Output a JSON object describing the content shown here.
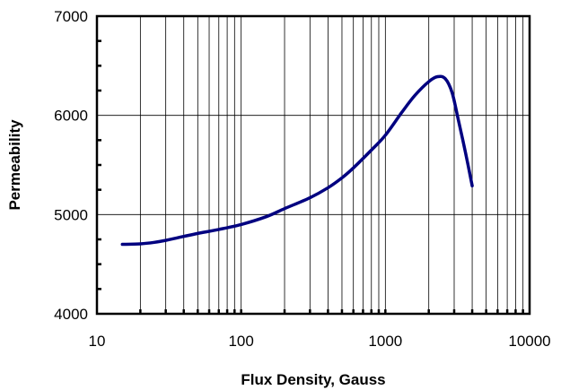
{
  "chart_data": {
    "type": "line",
    "title": "",
    "xlabel": "Flux Density, Gauss",
    "ylabel": "Permeability",
    "x_scale": "log",
    "xlim": [
      10,
      10000
    ],
    "ylim": [
      4000,
      7000
    ],
    "x_ticks": [
      10,
      100,
      1000,
      10000
    ],
    "x_tick_labels": [
      "10",
      "100",
      "1000",
      "10000"
    ],
    "y_ticks": [
      4000,
      5000,
      6000,
      7000
    ],
    "y_tick_labels": [
      "4000",
      "5000",
      "6000",
      "7000"
    ],
    "grid": true,
    "legend": "none",
    "line_color": "#000080",
    "series": [
      {
        "x": [
          15,
          20,
          25,
          30,
          40,
          50,
          70,
          100,
          150,
          200,
          300,
          400,
          500,
          600,
          800,
          1000,
          1300,
          1600,
          2000,
          2300,
          2600,
          2900,
          3200,
          3600,
          4000
        ],
        "y": [
          4700,
          4705,
          4720,
          4740,
          4780,
          4810,
          4850,
          4900,
          4980,
          5060,
          5170,
          5270,
          5370,
          5470,
          5650,
          5800,
          6030,
          6200,
          6340,
          6390,
          6370,
          6230,
          5960,
          5620,
          5290
        ]
      }
    ]
  }
}
